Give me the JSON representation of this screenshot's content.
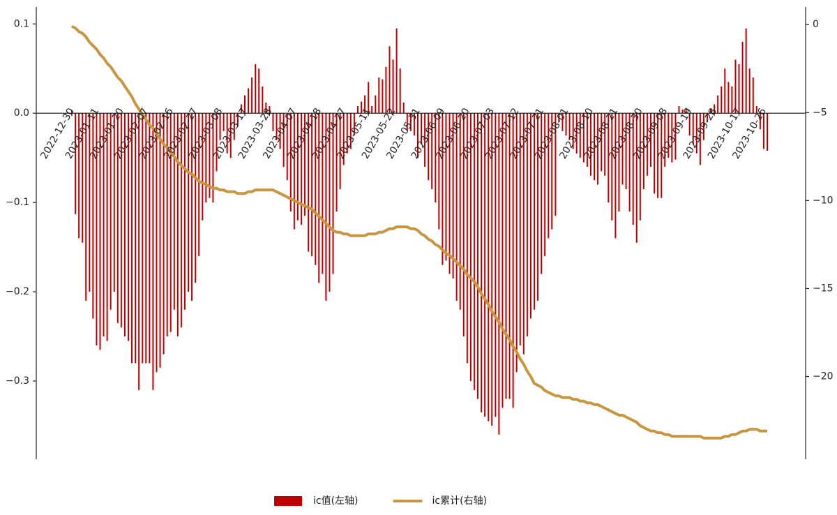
{
  "chart_data": {
    "type": "bar",
    "categories": [
      "2022-12-30",
      null,
      null,
      null,
      null,
      null,
      null,
      "2023-01-11",
      null,
      null,
      null,
      null,
      null,
      null,
      "2023-01-20",
      null,
      null,
      null,
      null,
      null,
      null,
      "2023-02-07",
      null,
      null,
      null,
      null,
      null,
      null,
      "2023-02-16",
      null,
      null,
      null,
      null,
      null,
      null,
      "2023-02-27",
      null,
      null,
      null,
      null,
      null,
      null,
      "2023-03-08",
      null,
      null,
      null,
      null,
      null,
      null,
      "2023-03-17",
      null,
      null,
      null,
      null,
      null,
      null,
      "2023-03-28",
      null,
      null,
      null,
      null,
      null,
      null,
      "2023-04-07",
      null,
      null,
      null,
      null,
      null,
      null,
      "2023-04-18",
      null,
      null,
      null,
      null,
      null,
      null,
      "2023-04-27",
      null,
      null,
      null,
      null,
      null,
      null,
      "2023-05-11",
      null,
      null,
      null,
      null,
      null,
      null,
      "2023-05-22",
      null,
      null,
      null,
      null,
      null,
      null,
      "2023-05-31",
      null,
      null,
      null,
      null,
      null,
      null,
      "2023-06-09",
      null,
      null,
      null,
      null,
      null,
      null,
      "2023-06-20",
      null,
      null,
      null,
      null,
      null,
      null,
      "2023-07-03",
      null,
      null,
      null,
      null,
      null,
      null,
      "2023-07-12",
      null,
      null,
      null,
      null,
      null,
      null,
      "2023-07-21",
      null,
      null,
      null,
      null,
      null,
      null,
      "2023-08-01",
      null,
      null,
      null,
      null,
      null,
      null,
      "2023-08-10",
      null,
      null,
      null,
      null,
      null,
      null,
      "2023-08-21",
      null,
      null,
      null,
      null,
      null,
      null,
      "2023-08-30",
      null,
      null,
      null,
      null,
      null,
      null,
      "2023-09-08",
      null,
      null,
      null,
      null,
      null,
      null,
      "2023-09-19",
      null,
      null,
      null,
      null,
      null,
      null,
      "2023-09-28",
      null,
      null,
      null,
      null,
      null,
      null,
      "2023-10-17",
      null,
      null,
      null,
      null,
      null,
      null,
      "2023-10-26",
      null
    ],
    "series": [
      {
        "name": "ic值(左轴)",
        "type": "bar",
        "color": "#c00000",
        "values": [
          0.003,
          -0.113,
          -0.14,
          -0.145,
          -0.21,
          -0.2,
          -0.23,
          -0.26,
          -0.265,
          -0.25,
          -0.255,
          -0.22,
          -0.2,
          -0.235,
          -0.24,
          -0.25,
          -0.255,
          -0.28,
          -0.28,
          -0.31,
          -0.28,
          -0.28,
          -0.28,
          -0.31,
          -0.29,
          -0.285,
          -0.27,
          -0.25,
          -0.245,
          -0.22,
          -0.25,
          -0.24,
          -0.22,
          -0.2,
          -0.21,
          -0.19,
          -0.16,
          -0.12,
          -0.1,
          -0.095,
          -0.1,
          -0.065,
          -0.03,
          -0.02,
          -0.045,
          -0.05,
          -0.03,
          -0.015,
          0.01,
          0.02,
          0.028,
          0.04,
          0.055,
          0.05,
          0.03,
          0.012,
          0.008,
          -0.02,
          -0.03,
          -0.04,
          -0.06,
          -0.075,
          -0.11,
          -0.13,
          -0.12,
          -0.125,
          -0.115,
          -0.155,
          -0.16,
          -0.17,
          -0.19,
          -0.18,
          -0.21,
          -0.2,
          -0.18,
          -0.11,
          -0.085,
          -0.058,
          -0.045,
          -0.04,
          -0.025,
          0.008,
          0.013,
          0.02,
          0.035,
          0.008,
          0.02,
          0.04,
          0.038,
          0.052,
          0.075,
          0.06,
          0.095,
          0.05,
          0.012,
          -0.02,
          -0.02,
          -0.025,
          -0.05,
          -0.035,
          -0.06,
          -0.075,
          -0.085,
          -0.1,
          -0.13,
          -0.17,
          -0.165,
          -0.18,
          -0.185,
          -0.21,
          -0.22,
          -0.25,
          -0.28,
          -0.3,
          -0.31,
          -0.32,
          -0.335,
          -0.34,
          -0.345,
          -0.35,
          -0.34,
          -0.36,
          -0.33,
          -0.32,
          -0.32,
          -0.33,
          -0.29,
          -0.26,
          -0.27,
          -0.25,
          -0.23,
          -0.22,
          -0.21,
          -0.18,
          -0.16,
          -0.14,
          -0.13,
          -0.115,
          -0.01,
          -0.02,
          -0.025,
          -0.03,
          -0.04,
          -0.045,
          -0.05,
          -0.055,
          -0.06,
          -0.07,
          -0.075,
          -0.08,
          -0.065,
          -0.07,
          -0.1,
          -0.12,
          -0.14,
          -0.11,
          -0.08,
          -0.085,
          -0.11,
          -0.125,
          -0.145,
          -0.12,
          -0.085,
          -0.07,
          -0.06,
          -0.09,
          -0.095,
          -0.095,
          -0.06,
          -0.05,
          -0.055,
          -0.052,
          0.008,
          0.004,
          0.006,
          -0.025,
          -0.035,
          -0.045,
          -0.058,
          -0.03,
          -0.01,
          0.005,
          0.01,
          0.02,
          0.03,
          0.05,
          0.035,
          0.03,
          0.06,
          0.055,
          0.08,
          0.095,
          0.05,
          0.04,
          0.008,
          -0.018,
          -0.04,
          -0.042
        ]
      },
      {
        "name": "ic累计(右轴)",
        "type": "line",
        "color": "#c8963e",
        "axis": "y2",
        "values": [
          -0.1,
          -0.2,
          -0.4,
          -0.5,
          -0.7,
          -1.0,
          -1.2,
          -1.4,
          -1.7,
          -1.9,
          -2.2,
          -2.4,
          -2.7,
          -3.0,
          -3.2,
          -3.5,
          -3.8,
          -4.1,
          -4.5,
          -4.8,
          -5.1,
          -5.4,
          -5.7,
          -5.9,
          -6.2,
          -6.5,
          -6.8,
          -7.0,
          -7.3,
          -7.5,
          -7.8,
          -8.0,
          -8.2,
          -8.4,
          -8.5,
          -8.7,
          -8.9,
          -9.0,
          -9.1,
          -9.2,
          -9.3,
          -9.3,
          -9.4,
          -9.4,
          -9.5,
          -9.5,
          -9.5,
          -9.6,
          -9.6,
          -9.6,
          -9.5,
          -9.5,
          -9.4,
          -9.4,
          -9.4,
          -9.4,
          -9.4,
          -9.4,
          -9.5,
          -9.6,
          -9.7,
          -9.8,
          -9.9,
          -10.0,
          -10.1,
          -10.2,
          -10.3,
          -10.4,
          -10.5,
          -10.7,
          -10.9,
          -11.1,
          -11.3,
          -11.5,
          -11.7,
          -11.8,
          -11.8,
          -11.9,
          -11.9,
          -12.0,
          -12.0,
          -12.0,
          -12.0,
          -12.0,
          -11.9,
          -11.9,
          -11.9,
          -11.8,
          -11.8,
          -11.7,
          -11.6,
          -11.6,
          -11.5,
          -11.5,
          -11.5,
          -11.5,
          -11.6,
          -11.6,
          -11.7,
          -11.9,
          -12.0,
          -12.2,
          -12.3,
          -12.5,
          -12.6,
          -12.8,
          -13.0,
          -13.1,
          -13.3,
          -13.5,
          -13.7,
          -13.9,
          -14.2,
          -14.4,
          -14.6,
          -14.9,
          -15.3,
          -15.6,
          -15.9,
          -16.3,
          -16.6,
          -16.9,
          -17.3,
          -17.6,
          -17.9,
          -18.3,
          -18.6,
          -19.0,
          -19.3,
          -19.7,
          -20.0,
          -20.4,
          -20.5,
          -20.6,
          -20.8,
          -20.9,
          -21.0,
          -21.1,
          -21.1,
          -21.2,
          -21.2,
          -21.2,
          -21.3,
          -21.3,
          -21.4,
          -21.4,
          -21.5,
          -21.5,
          -21.6,
          -21.6,
          -21.7,
          -21.8,
          -21.9,
          -22.0,
          -22.1,
          -22.2,
          -22.2,
          -22.3,
          -22.4,
          -22.5,
          -22.6,
          -22.8,
          -22.9,
          -23.0,
          -23.1,
          -23.1,
          -23.2,
          -23.2,
          -23.3,
          -23.3,
          -23.4,
          -23.4,
          -23.4,
          -23.4,
          -23.4,
          -23.4,
          -23.4,
          -23.4,
          -23.4,
          -23.5,
          -23.5,
          -23.5,
          -23.5,
          -23.5,
          -23.5,
          -23.4,
          -23.4,
          -23.3,
          -23.3,
          -23.2,
          -23.1,
          -23.1,
          -23.0,
          -23.0,
          -23.0,
          -23.1,
          -23.1,
          -23.1
        ]
      }
    ],
    "ylim": [
      -0.3875,
      0.119
    ],
    "yticks": [
      0.1,
      {
        "value": 0,
        "label": "0.0"
      },
      {
        "value": -0.1,
        "label": "−0.1"
      },
      {
        "value": -0.2,
        "label": "−0.2"
      },
      {
        "value": -0.3,
        "label": "−0.3"
      }
    ],
    "y2lim": [
      -24.7,
      1.0
    ],
    "y2ticks": [
      0,
      {
        "value": -5,
        "label": "−5"
      },
      {
        "value": -10,
        "label": "−10"
      },
      {
        "value": -15,
        "label": "−15"
      },
      {
        "value": -20,
        "label": "−20"
      }
    ],
    "legend": "lower center"
  }
}
